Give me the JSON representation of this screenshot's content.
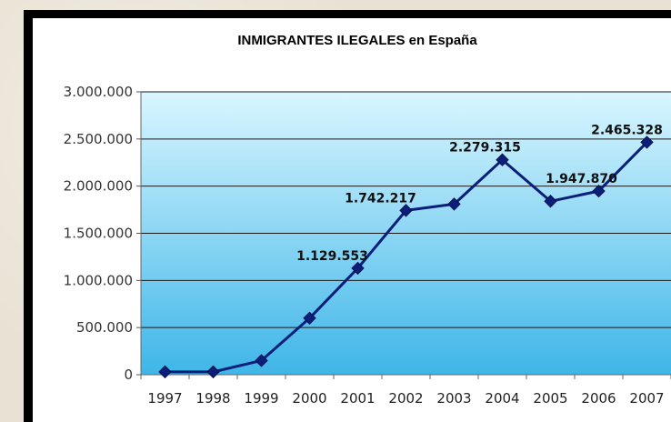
{
  "chart_data": {
    "type": "line",
    "title": "INMIGRANTES ILEGALES en España",
    "xlabel": "",
    "ylabel": "",
    "ylim": [
      0,
      3000000
    ],
    "yticks": [
      {
        "value": 0,
        "label": "0"
      },
      {
        "value": 500000,
        "label": "500.000"
      },
      {
        "value": 1000000,
        "label": "1.000.000"
      },
      {
        "value": 1500000,
        "label": "1.500.000"
      },
      {
        "value": 2000000,
        "label": "2.000.000"
      },
      {
        "value": 2500000,
        "label": "2.500.000"
      },
      {
        "value": 3000000,
        "label": "3.000.000"
      }
    ],
    "grid": true,
    "legend": "none",
    "categories": [
      "1997",
      "1998",
      "1999",
      "2000",
      "2001",
      "2002",
      "2003",
      "2004",
      "2005",
      "2006",
      "2007"
    ],
    "series": [
      {
        "values": [
          30000,
          30000,
          150000,
          600000,
          1129553,
          1742217,
          1810000,
          2279315,
          1840000,
          1947870,
          2465328
        ],
        "data_labels": [
          "",
          "",
          "",
          "",
          "1.129.553",
          "1.742.217",
          "",
          "2.279.315",
          "",
          "1.947.870",
          "2.465.328"
        ],
        "color": "#0b1f7a"
      }
    ],
    "plot_background": [
      "#d9f6ff",
      "#3fb6e8"
    ]
  }
}
